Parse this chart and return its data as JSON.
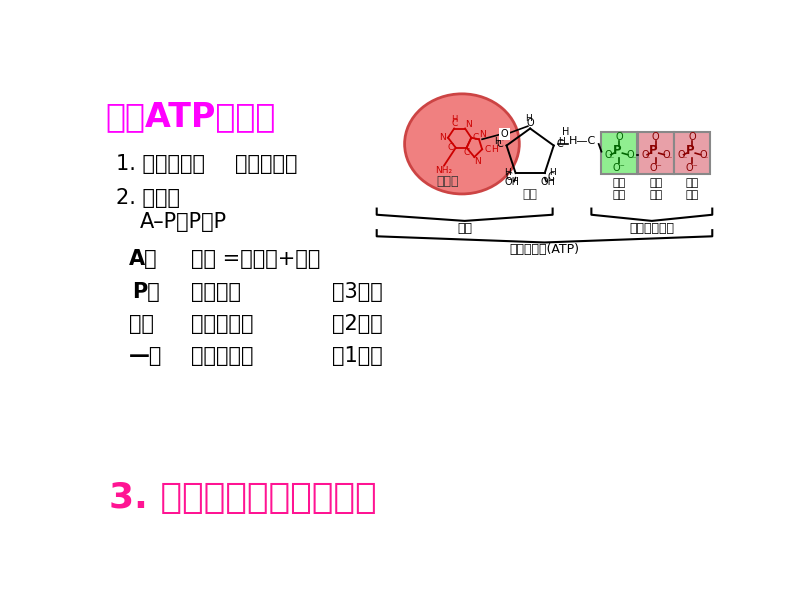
{
  "bg_color": "#ffffff",
  "title_text": "一．ATP的结构",
  "title_color": "#ff00ff",
  "line1_label": "1. 中文名称：",
  "line1_value": "三磷酸腕苷",
  "line2_label": "2. 简式：",
  "line3_formula": "A–P～P～P",
  "lineA_symbol": "A：",
  "lineA_value": "腕苷 =腕噘呂+核糖",
  "lineP_symbol": "P：",
  "lineP_value": "磷酸基团",
  "lineP_count": "（3个）",
  "lineW_symbol": "～：",
  "lineW_value": "高能磷酸键",
  "lineW_count": "（2个）",
  "lineD_symbol": "—：",
  "lineD_value": "普通磷酸键",
  "lineD_count": "（1个）",
  "line3_text": "3. 是一种高能磷酸化合物",
  "line3_color": "#ff1493",
  "text_color": "#000000",
  "adenine_oval_color": "#f08080",
  "adenine_oval_edge": "#cc4444",
  "green_box_color": "#90ee90",
  "pink_box_color": "#e8a0a8",
  "ring_color": "#cc0000",
  "label_adenine": "腕噘呂",
  "label_ribose": "核糖",
  "label_nucleoside": "腕苷",
  "label_three_phosphate": "三个磷酸基团",
  "label_atp": "三磷酸腕苷(ATP)",
  "label_phosphate": "磷酸\n基团"
}
